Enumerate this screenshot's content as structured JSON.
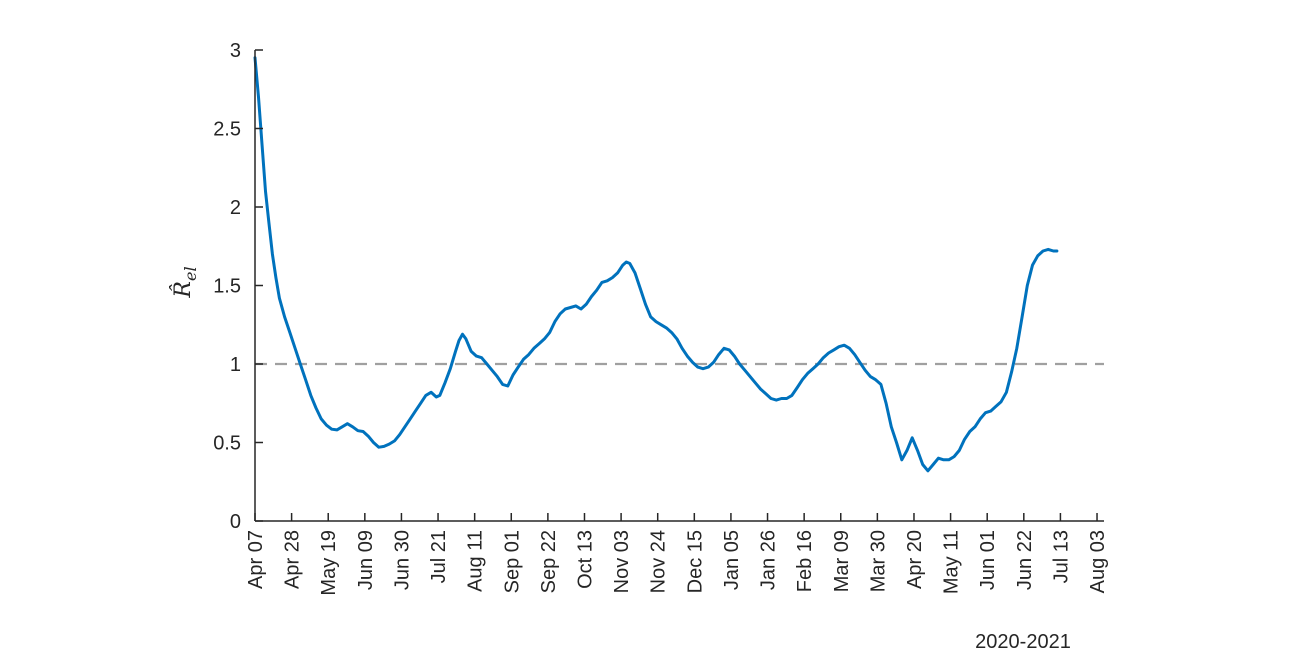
{
  "chart_data": {
    "type": "line",
    "title": "",
    "xlabel": "",
    "ylabel": "R̂",
    "ylabel_subscript": "el",
    "x_secondary_label": "2020-2021",
    "ylim": [
      0,
      3
    ],
    "yticks": [
      "0",
      "0.5",
      "1",
      "1.5",
      "2",
      "2.5",
      "3"
    ],
    "xticks": [
      "Apr 07",
      "Apr 28",
      "May 19",
      "Jun 09",
      "Jun 30",
      "Jul 21",
      "Aug 11",
      "Sep 01",
      "Sep 22",
      "Oct 13",
      "Nov 03",
      "Nov 24",
      "Dec 15",
      "Jan 05",
      "Jan 26",
      "Feb 16",
      "Mar 09",
      "Mar 30",
      "Apr 20",
      "May 11",
      "Jun 01",
      "Jun 22",
      "Jul 13",
      "Aug 03"
    ],
    "x_unit": "days since Apr 07, 2020",
    "xlim": [
      0,
      487
    ],
    "reference_line": {
      "y": 1,
      "style": "dashed",
      "color": "#a0a0a0"
    },
    "series": [
      {
        "color": "#0072bd",
        "points": [
          [
            0,
            2.95
          ],
          [
            2,
            2.7
          ],
          [
            4,
            2.4
          ],
          [
            6,
            2.1
          ],
          [
            8,
            1.9
          ],
          [
            10,
            1.7
          ],
          [
            12,
            1.55
          ],
          [
            14,
            1.42
          ],
          [
            17,
            1.3
          ],
          [
            20,
            1.2
          ],
          [
            23,
            1.1
          ],
          [
            26,
            1.0
          ],
          [
            29,
            0.9
          ],
          [
            32,
            0.8
          ],
          [
            35,
            0.72
          ],
          [
            38,
            0.65
          ],
          [
            41,
            0.61
          ],
          [
            44,
            0.585
          ],
          [
            47,
            0.58
          ],
          [
            50,
            0.6
          ],
          [
            53,
            0.62
          ],
          [
            56,
            0.6
          ],
          [
            59,
            0.575
          ],
          [
            62,
            0.57
          ],
          [
            65,
            0.54
          ],
          [
            68,
            0.5
          ],
          [
            71,
            0.47
          ],
          [
            74,
            0.475
          ],
          [
            77,
            0.49
          ],
          [
            80,
            0.51
          ],
          [
            83,
            0.55
          ],
          [
            86,
            0.6
          ],
          [
            89,
            0.65
          ],
          [
            92,
            0.7
          ],
          [
            95,
            0.75
          ],
          [
            98,
            0.8
          ],
          [
            101,
            0.82
          ],
          [
            104,
            0.79
          ],
          [
            106,
            0.8
          ],
          [
            109,
            0.88
          ],
          [
            112,
            0.97
          ],
          [
            115,
            1.08
          ],
          [
            117,
            1.15
          ],
          [
            119,
            1.19
          ],
          [
            121,
            1.16
          ],
          [
            124,
            1.08
          ],
          [
            127,
            1.05
          ],
          [
            130,
            1.04
          ],
          [
            133,
            1.0
          ],
          [
            136,
            0.96
          ],
          [
            139,
            0.92
          ],
          [
            142,
            0.87
          ],
          [
            145,
            0.86
          ],
          [
            148,
            0.93
          ],
          [
            151,
            0.98
          ],
          [
            154,
            1.03
          ],
          [
            157,
            1.06
          ],
          [
            160,
            1.1
          ],
          [
            163,
            1.13
          ],
          [
            166,
            1.16
          ],
          [
            169,
            1.2
          ],
          [
            172,
            1.27
          ],
          [
            175,
            1.32
          ],
          [
            178,
            1.35
          ],
          [
            181,
            1.36
          ],
          [
            184,
            1.37
          ],
          [
            187,
            1.35
          ],
          [
            190,
            1.38
          ],
          [
            193,
            1.43
          ],
          [
            196,
            1.47
          ],
          [
            199,
            1.52
          ],
          [
            202,
            1.53
          ],
          [
            205,
            1.55
          ],
          [
            208,
            1.58
          ],
          [
            211,
            1.63
          ],
          [
            213,
            1.65
          ],
          [
            215,
            1.64
          ],
          [
            218,
            1.58
          ],
          [
            221,
            1.48
          ],
          [
            224,
            1.38
          ],
          [
            227,
            1.3
          ],
          [
            230,
            1.27
          ],
          [
            233,
            1.25
          ],
          [
            236,
            1.23
          ],
          [
            239,
            1.2
          ],
          [
            242,
            1.16
          ],
          [
            245,
            1.1
          ],
          [
            248,
            1.05
          ],
          [
            251,
            1.01
          ],
          [
            254,
            0.98
          ],
          [
            257,
            0.97
          ],
          [
            260,
            0.98
          ],
          [
            263,
            1.01
          ],
          [
            266,
            1.06
          ],
          [
            269,
            1.1
          ],
          [
            272,
            1.09
          ],
          [
            275,
            1.05
          ],
          [
            278,
            1.0
          ],
          [
            281,
            0.96
          ],
          [
            284,
            0.92
          ],
          [
            287,
            0.88
          ],
          [
            290,
            0.84
          ],
          [
            293,
            0.81
          ],
          [
            296,
            0.78
          ],
          [
            299,
            0.77
          ],
          [
            302,
            0.78
          ],
          [
            305,
            0.78
          ],
          [
            308,
            0.8
          ],
          [
            311,
            0.85
          ],
          [
            314,
            0.9
          ],
          [
            317,
            0.94
          ],
          [
            320,
            0.97
          ],
          [
            323,
            1.0
          ],
          [
            326,
            1.04
          ],
          [
            329,
            1.07
          ],
          [
            332,
            1.09
          ],
          [
            335,
            1.11
          ],
          [
            338,
            1.12
          ],
          [
            341,
            1.1
          ],
          [
            344,
            1.06
          ],
          [
            347,
            1.01
          ],
          [
            350,
            0.96
          ],
          [
            353,
            0.92
          ],
          [
            356,
            0.9
          ],
          [
            359,
            0.87
          ],
          [
            362,
            0.75
          ],
          [
            365,
            0.6
          ],
          [
            368,
            0.5
          ],
          [
            371,
            0.39
          ],
          [
            374,
            0.45
          ],
          [
            377,
            0.53
          ],
          [
            380,
            0.45
          ],
          [
            383,
            0.36
          ],
          [
            386,
            0.32
          ],
          [
            389,
            0.36
          ],
          [
            392,
            0.4
          ],
          [
            395,
            0.39
          ],
          [
            398,
            0.39
          ],
          [
            401,
            0.41
          ],
          [
            404,
            0.45
          ],
          [
            407,
            0.52
          ],
          [
            410,
            0.57
          ],
          [
            413,
            0.6
          ],
          [
            416,
            0.65
          ],
          [
            419,
            0.69
          ],
          [
            422,
            0.7
          ],
          [
            425,
            0.73
          ],
          [
            428,
            0.76
          ],
          [
            431,
            0.82
          ],
          [
            434,
            0.95
          ],
          [
            437,
            1.1
          ],
          [
            440,
            1.3
          ],
          [
            443,
            1.5
          ],
          [
            446,
            1.63
          ],
          [
            449,
            1.69
          ],
          [
            452,
            1.72
          ],
          [
            455,
            1.73
          ],
          [
            458,
            1.72
          ],
          [
            460,
            1.72
          ]
        ]
      }
    ]
  }
}
